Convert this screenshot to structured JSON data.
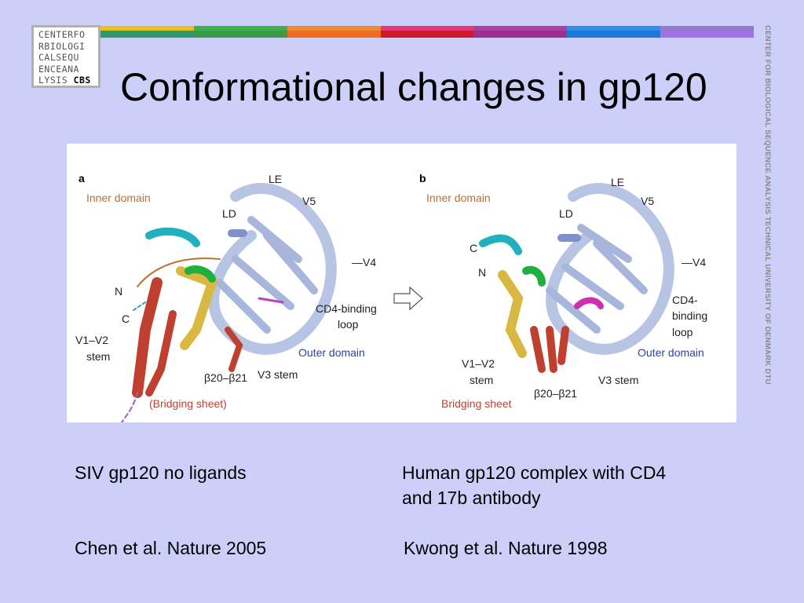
{
  "logo": {
    "lines": [
      "CENTERFO",
      "RBIOLOGI",
      "CALSEQU",
      "ENCEANA",
      "LYSIS"
    ],
    "badge": "CBS"
  },
  "sidebar": "CENTER FOR BIOLOGICAL SEQUENCE ANALYSIS TECHNICAL UNIVERSITY OF DENMARK DTU",
  "title": "Conformational changes in gp120",
  "figure": {
    "panel_a": {
      "letter": "a",
      "inner_domain": "Inner domain",
      "le": "LE",
      "v5": "V5",
      "ld": "LD",
      "v4": "—V4",
      "n": "N",
      "c": "C",
      "cd4_loop": [
        "CD4-binding",
        "loop"
      ],
      "v1v2": [
        "V1–V2",
        "stem"
      ],
      "outer_domain": "Outer domain",
      "beta": "β20–β21",
      "v3": "V3 stem",
      "bridging": "(Bridging sheet)"
    },
    "panel_b": {
      "letter": "b",
      "inner_domain": "Inner domain",
      "le": "LE",
      "v5": "V5",
      "ld": "LD",
      "v4": "—V4",
      "c": "C",
      "n": "N",
      "cd4_loop": [
        "CD4-",
        "binding",
        "loop"
      ],
      "v1v2": [
        "V1–V2",
        "stem"
      ],
      "outer_domain": "Outer domain",
      "beta": "β20–β21",
      "v3": "V3 stem",
      "bridging": "Bridging sheet"
    }
  },
  "captions": {
    "left": [
      "SIV gp120 no ligands"
    ],
    "right": [
      "Human gp120 complex with CD4",
      "and 17b antibody"
    ]
  },
  "references": {
    "left": "Chen et al. Nature 2005",
    "right": "Kwong et al. Nature 1998"
  }
}
